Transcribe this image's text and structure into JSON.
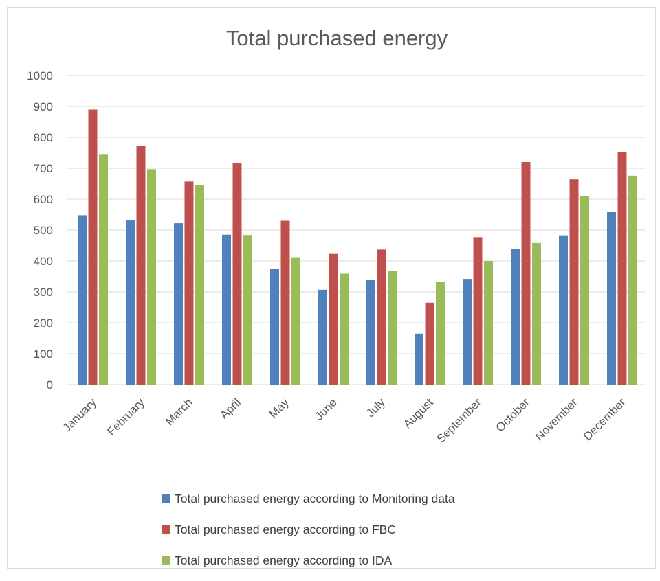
{
  "colors": {
    "series_1": "#4f81bd",
    "series_2": "#c0504d",
    "series_3": "#9bbb59",
    "grid": "#d9d9d9",
    "text": "#595959"
  },
  "chart_data": {
    "type": "bar",
    "title": "Total purchased energy",
    "xlabel": "",
    "ylabel": "",
    "ylim": [
      0,
      1000
    ],
    "yticks": [
      "0",
      "100",
      "200",
      "300",
      "400",
      "500",
      "600",
      "700",
      "800",
      "900",
      "1000"
    ],
    "grid": true,
    "legend_position": "bottom",
    "categories": [
      "January",
      "February",
      "March",
      "April",
      "May",
      "June",
      "July",
      "August",
      "September",
      "October",
      "November",
      "December"
    ],
    "series": [
      {
        "name": "Total purchased energy according to Monitoring data",
        "values": [
          548,
          531,
          522,
          485,
          374,
          307,
          340,
          165,
          342,
          438,
          483,
          558
        ]
      },
      {
        "name": "Total purchased energy according to FBC",
        "values": [
          890,
          773,
          657,
          717,
          530,
          423,
          437,
          265,
          477,
          720,
          664,
          753
        ]
      },
      {
        "name": "Total purchased energy according to IDA",
        "values": [
          746,
          697,
          646,
          484,
          412,
          359,
          368,
          332,
          400,
          458,
          611,
          676
        ]
      }
    ]
  }
}
